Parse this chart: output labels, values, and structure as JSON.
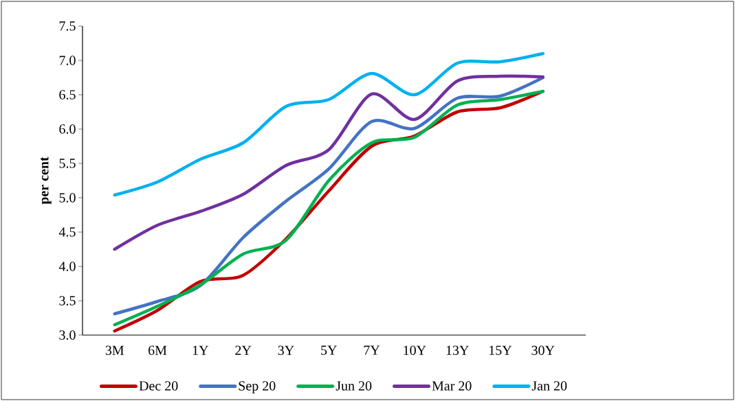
{
  "chart_data": {
    "type": "line",
    "ylabel": "per cent",
    "categories": [
      "3M",
      "6M",
      "1Y",
      "2Y",
      "3Y",
      "5Y",
      "7Y",
      "10Y",
      "13Y",
      "15Y",
      "30Y"
    ],
    "series": [
      {
        "name": "Dec 20",
        "color": "#c00000",
        "values": [
          3.06,
          3.36,
          3.78,
          3.87,
          4.4,
          5.1,
          5.75,
          5.9,
          6.25,
          6.31,
          6.55
        ]
      },
      {
        "name": "Sep 20",
        "color": "#4472c4",
        "values": [
          3.31,
          3.49,
          3.72,
          4.42,
          4.95,
          5.42,
          6.11,
          6.01,
          6.45,
          6.48,
          6.75
        ]
      },
      {
        "name": "Jun 20",
        "color": "#00b050",
        "values": [
          3.15,
          3.42,
          3.73,
          4.18,
          4.38,
          5.25,
          5.8,
          5.88,
          6.35,
          6.43,
          6.55
        ]
      },
      {
        "name": "Mar 20",
        "color": "#7030a0",
        "values": [
          4.25,
          4.6,
          4.8,
          5.05,
          5.47,
          5.7,
          6.51,
          6.14,
          6.7,
          6.77,
          6.76
        ]
      },
      {
        "name": "Jan 20",
        "color": "#00b0f0",
        "values": [
          5.04,
          5.23,
          5.56,
          5.8,
          6.33,
          6.43,
          6.81,
          6.5,
          6.96,
          6.98,
          7.1
        ]
      }
    ],
    "ylim": [
      3.0,
      7.5
    ],
    "yticks": [
      {
        "value": 3.0,
        "label": "3.0"
      },
      {
        "value": 3.5,
        "label": "3.5"
      },
      {
        "value": 4.0,
        "label": "4.0"
      },
      {
        "value": 4.5,
        "label": "4.5"
      },
      {
        "value": 5.0,
        "label": "5.0"
      },
      {
        "value": 5.5,
        "label": "5.5"
      },
      {
        "value": 6.0,
        "label": "6.0"
      },
      {
        "value": 6.5,
        "label": "6.5"
      },
      {
        "value": 7.0,
        "label": "7.0"
      },
      {
        "value": 7.5,
        "label": "7.5"
      }
    ],
    "grid": false,
    "legend": "bottom",
    "marker": "none",
    "line_style": "solid"
  }
}
